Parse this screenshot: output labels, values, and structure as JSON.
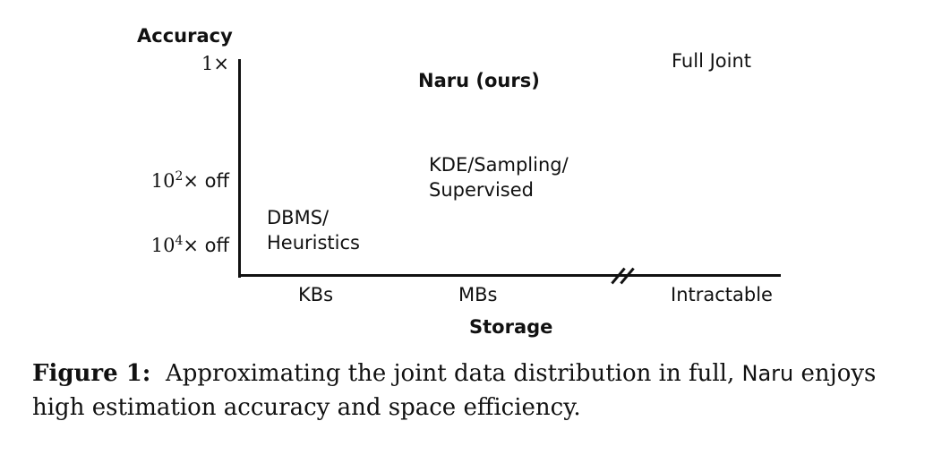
{
  "axes": {
    "y_title": "Accuracy",
    "x_title": "Storage",
    "y_ticks": [
      {
        "base": "1",
        "exp": "",
        "suffix": "×"
      },
      {
        "base": "10",
        "exp": "2",
        "suffix": "× off"
      },
      {
        "base": "10",
        "exp": "4",
        "suffix": "× off"
      }
    ],
    "x_ticks": [
      "KBs",
      "MBs",
      "Intractable"
    ]
  },
  "points": [
    {
      "lines": [
        "Full Joint"
      ],
      "bold": false
    },
    {
      "lines": [
        "Naru (ours)"
      ],
      "bold": true
    },
    {
      "lines": [
        "KDE/Sampling/",
        "Supervised"
      ],
      "bold": false
    },
    {
      "lines": [
        "DBMS/",
        "Heuristics"
      ],
      "bold": false
    }
  ],
  "caption": {
    "label": "Figure 1:",
    "text_before": "Approximating the joint data distribution in full,",
    "system": "Naru",
    "text_after": "enjoys high estimation accuracy and space efficiency."
  }
}
